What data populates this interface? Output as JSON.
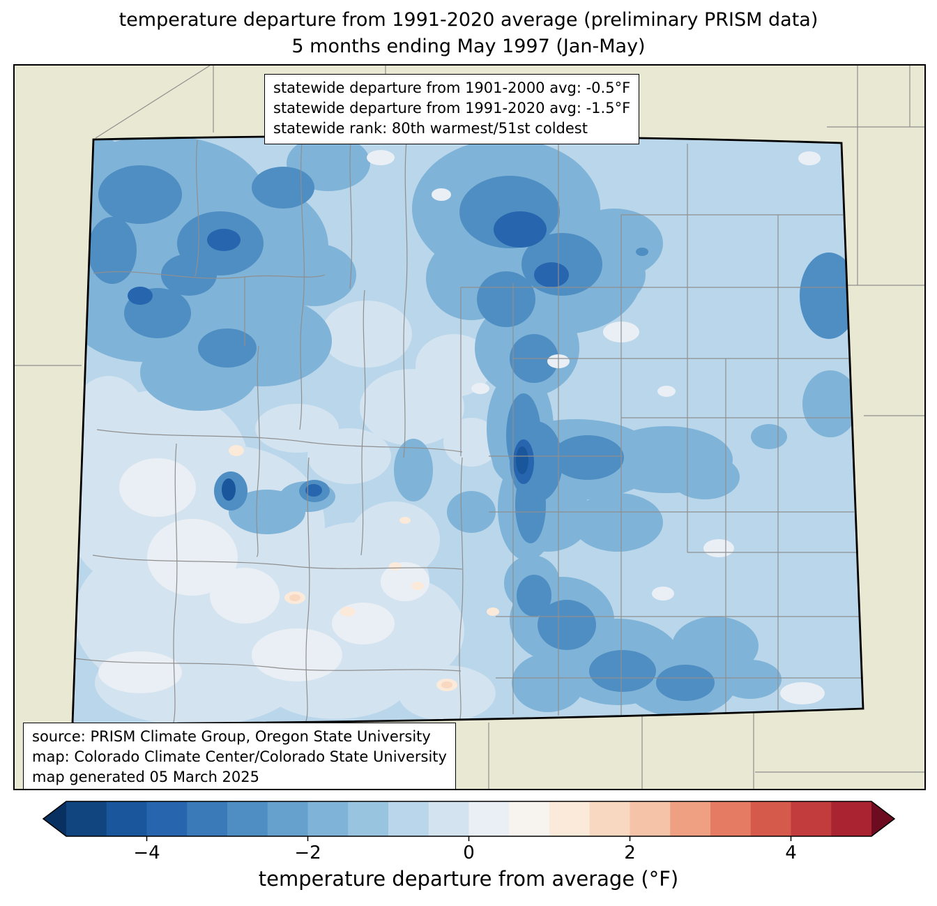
{
  "title": {
    "line1": "temperature departure from 1991-2020 average (preliminary PRISM data)",
    "line2": "5 months ending May 1997 (Jan-May)"
  },
  "stats_box": {
    "lines": [
      "statewide departure from 1901-2000 avg: -0.5°F",
      "statewide departure from 1991-2020 avg: -1.5°F",
      "statewide rank: 80th warmest/51st coldest"
    ]
  },
  "source_box": {
    "lines": [
      "source: PRISM Climate Group, Oregon State University",
      "map: Colorado Climate Center/Colorado State University",
      "map generated 05 March 2025"
    ]
  },
  "colorbar": {
    "label": "temperature departure from average (°F)",
    "range": [
      -5,
      5
    ],
    "ticks": [
      {
        "value": -4,
        "label": "−4"
      },
      {
        "value": -2,
        "label": "−2"
      },
      {
        "value": 0,
        "label": "0"
      },
      {
        "value": 2,
        "label": "2"
      },
      {
        "value": 4,
        "label": "4"
      }
    ],
    "colors": [
      "#10457f",
      "#1a569b",
      "#2766ae",
      "#3a7ab9",
      "#4f8ec3",
      "#66a1cd",
      "#7fb3d7",
      "#99c4e0",
      "#b9d6ea",
      "#d3e3f0",
      "#e9eff4",
      "#f7f3ee",
      "#fbe9da",
      "#f9d8c2",
      "#f5c3a7",
      "#ef9f82",
      "#e57b62",
      "#d65a4c",
      "#c23b3d",
      "#a92430"
    ],
    "left_arrow_color": "#083060",
    "right_arrow_color": "#6d0b20"
  },
  "colors": {
    "map_background": "#e9e8d2",
    "county_line": "#8f8f8f",
    "state_border": "#000000",
    "box_background": "#ffffff"
  }
}
